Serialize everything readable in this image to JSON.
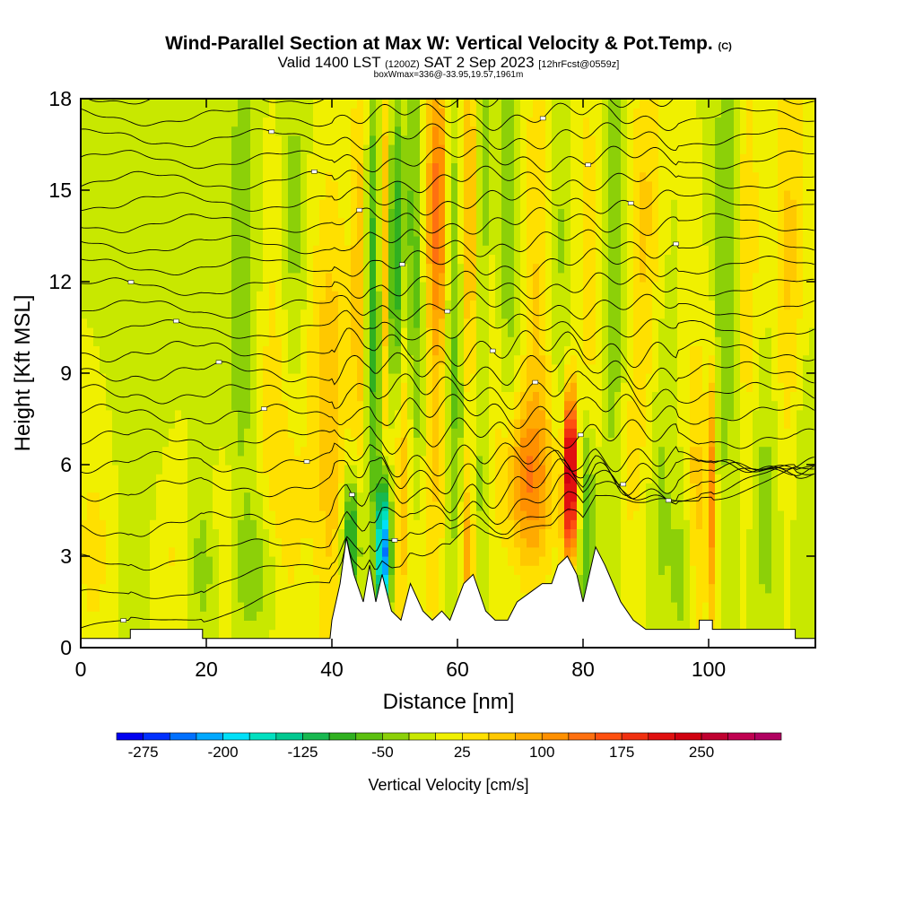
{
  "header": {
    "title": "Wind-Parallel Section at Max W: Vertical Velocity & Pot.Temp.",
    "title_mark": "(C)",
    "subtitle_a": "Valid 1400 LST",
    "subtitle_b": "(1200Z)",
    "subtitle_c": "SAT 2 Sep 2023",
    "subtitle_d": "[12hrFcst@0559z]",
    "subtitle2": "boxWmax=336@-33.95,19.57,1961m"
  },
  "chart_data": {
    "type": "heatmap",
    "xlabel": "Distance [nm]",
    "ylabel": "Height [Kft MSL]",
    "xlim": [
      0,
      117
    ],
    "ylim": [
      0,
      18
    ],
    "x_ticks": [
      0,
      20,
      40,
      60,
      80,
      100
    ],
    "y_ticks": [
      0,
      3,
      6,
      9,
      12,
      15,
      18
    ],
    "colorbar": {
      "title": "Vertical Velocity [cm/s]",
      "range": [
        -300,
        325
      ],
      "step": 25,
      "labels": [
        -275,
        -200,
        -125,
        -50,
        25,
        100,
        175,
        250
      ],
      "colors": [
        "#0000f0",
        "#0030ff",
        "#0070ff",
        "#00a8ff",
        "#00e0f8",
        "#00e0c0",
        "#00c890",
        "#18b850",
        "#30b020",
        "#5cc010",
        "#8cd008",
        "#c8e800",
        "#f0f000",
        "#ffe000",
        "#ffc800",
        "#ffaa00",
        "#ff9000",
        "#ff7010",
        "#ff5010",
        "#f03010",
        "#e01010",
        "#d00010",
        "#c00030",
        "#c00050",
        "#b00060"
      ]
    },
    "background_w": 0,
    "vertical_velocity_features": [
      {
        "x": 2,
        "z": 3.2,
        "sx": 1.8,
        "sz": 2.2,
        "w": 40
      },
      {
        "x": 10,
        "z": 11,
        "sx": 3,
        "sz": 7,
        "w": -10
      },
      {
        "x": 15,
        "z": 3,
        "sx": 2,
        "sz": 2,
        "w": 40
      },
      {
        "x": 20,
        "z": 2.8,
        "sx": 3.5,
        "sz": 2,
        "w": -40
      },
      {
        "x": 23,
        "z": 3.2,
        "sx": 1.5,
        "sz": 2,
        "w": 60
      },
      {
        "x": 29,
        "z": 2.5,
        "sx": 3,
        "sz": 1.6,
        "w": -40
      },
      {
        "x": 33,
        "z": 4,
        "sx": 2,
        "sz": 3,
        "w": 45
      },
      {
        "x": 26,
        "z": 12,
        "sx": 2.2,
        "sz": 6,
        "w": -45
      },
      {
        "x": 30,
        "z": 9,
        "sx": 2,
        "sz": 5,
        "w": 35
      },
      {
        "x": 34,
        "z": 12,
        "sx": 1.5,
        "sz": 5,
        "w": -50
      },
      {
        "x": 36,
        "z": 9,
        "sx": 3,
        "sz": 4,
        "w": 30
      },
      {
        "x": 40,
        "z": 7,
        "sx": 1.8,
        "sz": 6,
        "w": 60
      },
      {
        "x": 43,
        "z": 3.5,
        "sx": 1,
        "sz": 1.6,
        "w": -130
      },
      {
        "x": 44.5,
        "z": 12,
        "sx": 1,
        "sz": 5,
        "w": 75
      },
      {
        "x": 46,
        "z": 11,
        "sx": 0.8,
        "sz": 4,
        "w": -55
      },
      {
        "x": 47,
        "z": 12,
        "sx": 0.9,
        "sz": 6,
        "w": -70
      },
      {
        "x": 48.3,
        "z": 3.2,
        "sx": 0.8,
        "sz": 1.6,
        "w": -250
      },
      {
        "x": 48.5,
        "z": 13,
        "sx": 0.8,
        "sz": 5,
        "w": 100
      },
      {
        "x": 50,
        "z": 12,
        "sx": 0.8,
        "sz": 4,
        "w": -140
      },
      {
        "x": 51,
        "z": 6,
        "sx": 1.2,
        "sz": 4,
        "w": 85
      },
      {
        "x": 53,
        "z": 14,
        "sx": 1,
        "sz": 4,
        "w": -60
      },
      {
        "x": 54,
        "z": 8,
        "sx": 1.5,
        "sz": 3,
        "w": -45
      },
      {
        "x": 57,
        "z": 14.5,
        "sx": 1.4,
        "sz": 3.5,
        "w": 145
      },
      {
        "x": 56,
        "z": 6,
        "sx": 1.5,
        "sz": 4,
        "w": 60
      },
      {
        "x": 59,
        "z": 14,
        "sx": 1,
        "sz": 5,
        "w": -65
      },
      {
        "x": 60,
        "z": 7,
        "sx": 1.2,
        "sz": 4,
        "w": -40
      },
      {
        "x": 62,
        "z": 14,
        "sx": 1,
        "sz": 5,
        "w": 85
      },
      {
        "x": 61.5,
        "z": 3,
        "sx": 0.8,
        "sz": 2,
        "w": 95
      },
      {
        "x": 64,
        "z": 15,
        "sx": 1.1,
        "sz": 4,
        "w": -70
      },
      {
        "x": 63.5,
        "z": 6,
        "sx": 1,
        "sz": 4,
        "w": -50
      },
      {
        "x": 65,
        "z": 12,
        "sx": 2,
        "sz": 6,
        "w": 40
      },
      {
        "x": 68,
        "z": 14,
        "sx": 1.5,
        "sz": 6,
        "w": -55
      },
      {
        "x": 71,
        "z": 5.5,
        "sx": 2.8,
        "sz": 2,
        "w": 110
      },
      {
        "x": 73,
        "z": 12,
        "sx": 2,
        "sz": 6,
        "w": 55
      },
      {
        "x": 76,
        "z": 13,
        "sx": 1.5,
        "sz": 5,
        "w": -40
      },
      {
        "x": 78,
        "z": 6.5,
        "sx": 0.7,
        "sz": 1.5,
        "w": 250
      },
      {
        "x": 78,
        "z": 4.2,
        "sx": 1,
        "sz": 1.2,
        "w": 140
      },
      {
        "x": 80.5,
        "z": 4,
        "sx": 1,
        "sz": 2.5,
        "w": -95
      },
      {
        "x": 81,
        "z": 12,
        "sx": 1.5,
        "sz": 6,
        "w": 40
      },
      {
        "x": 85,
        "z": 12,
        "sx": 1.5,
        "sz": 7,
        "w": -55
      },
      {
        "x": 87,
        "z": 6,
        "sx": 1.8,
        "sz": 4,
        "w": 35
      },
      {
        "x": 90,
        "z": 14,
        "sx": 1.5,
        "sz": 6,
        "w": 55
      },
      {
        "x": 92,
        "z": 5,
        "sx": 1.8,
        "sz": 4,
        "w": -35
      },
      {
        "x": 96,
        "z": 2.5,
        "sx": 1.2,
        "sz": 1.6,
        "w": -45
      },
      {
        "x": 98,
        "z": 5,
        "sx": 1.2,
        "sz": 4,
        "w": 60
      },
      {
        "x": 100.5,
        "z": 5,
        "sx": 0.5,
        "sz": 3,
        "w": 115
      },
      {
        "x": 103,
        "z": 13,
        "sx": 1.5,
        "sz": 6,
        "w": -55
      },
      {
        "x": 106,
        "z": 12,
        "sx": 1.5,
        "sz": 6,
        "w": 50
      },
      {
        "x": 109,
        "z": 5,
        "sx": 2,
        "sz": 4,
        "w": -40
      },
      {
        "x": 113,
        "z": 12,
        "sx": 2,
        "sz": 6,
        "w": 60
      },
      {
        "x": 115,
        "z": 6,
        "sx": 1.5,
        "sz": 4,
        "w": -40
      }
    ],
    "terrain_profile": [
      [
        0,
        0.3
      ],
      [
        7.9,
        0.3
      ],
      [
        7.9,
        0.6
      ],
      [
        19.4,
        0.6
      ],
      [
        19.4,
        0.3
      ],
      [
        39.7,
        0.3
      ],
      [
        40,
        0.9
      ],
      [
        41.3,
        2.1
      ],
      [
        42.3,
        3.6
      ],
      [
        43.5,
        2.4
      ],
      [
        45,
        1.5
      ],
      [
        46,
        2.7
      ],
      [
        47,
        1.5
      ],
      [
        48,
        2.4
      ],
      [
        49.5,
        1.2
      ],
      [
        51,
        0.9
      ],
      [
        52.5,
        2.1
      ],
      [
        54.5,
        1.2
      ],
      [
        56,
        0.9
      ],
      [
        57.5,
        1.2
      ],
      [
        58.8,
        0.9
      ],
      [
        61,
        2.1
      ],
      [
        62.5,
        2.4
      ],
      [
        64.5,
        1.2
      ],
      [
        66,
        0.9
      ],
      [
        68,
        0.9
      ],
      [
        69.5,
        1.5
      ],
      [
        71.5,
        1.8
      ],
      [
        73.5,
        2.1
      ],
      [
        75,
        2.1
      ],
      [
        76,
        2.7
      ],
      [
        77.5,
        3.0
      ],
      [
        79,
        2.4
      ],
      [
        80,
        1.5
      ],
      [
        81,
        2.4
      ],
      [
        82,
        3.3
      ],
      [
        83.5,
        2.7
      ],
      [
        86,
        1.5
      ],
      [
        88,
        0.9
      ],
      [
        90,
        0.6
      ],
      [
        98.5,
        0.6
      ],
      [
        98.5,
        0.9
      ],
      [
        100.6,
        0.9
      ],
      [
        100.6,
        0.6
      ],
      [
        113.8,
        0.6
      ],
      [
        113.8,
        0.3
      ],
      [
        117,
        0.3
      ]
    ],
    "isentrope_levels": [
      0.55,
      1.55,
      2.7,
      3.85,
      5.1,
      6.0,
      6.8,
      7.6,
      8.3,
      9.0,
      9.7,
      10.4,
      11.1,
      11.8,
      12.5,
      13.2,
      13.9,
      14.6,
      15.3,
      16.0,
      16.7,
      17.4,
      18.1
    ]
  }
}
